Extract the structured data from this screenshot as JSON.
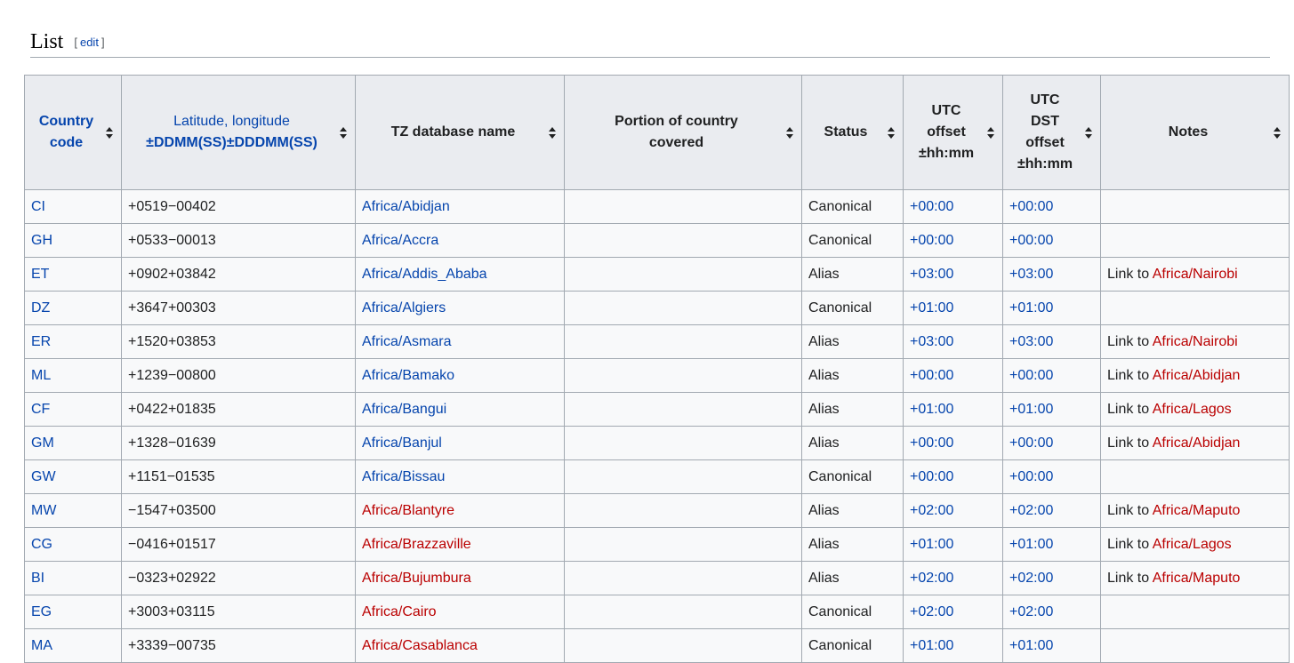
{
  "section": {
    "title": "List",
    "edit_open": "[",
    "edit_label": "edit",
    "edit_close": "]"
  },
  "table": {
    "headers": {
      "country_code": {
        "line1": "Country",
        "line2": "code"
      },
      "latlong": {
        "line1": "Latitude, longitude",
        "line2": "±DDMM(SS)±DDDMM(SS)"
      },
      "tz_name": "TZ database name",
      "portion": {
        "line1": "Portion of country",
        "line2": "covered"
      },
      "status": "Status",
      "utc_offset": {
        "line1": "UTC",
        "line2": "offset",
        "line3": "±hh:mm"
      },
      "utc_dst": {
        "line1": "UTC",
        "line2": "DST",
        "line3": "offset",
        "line4": "±hh:mm"
      },
      "notes": "Notes"
    },
    "link_prefix": "Link to",
    "rows": [
      {
        "code": "CI",
        "coords": "+0519−00402",
        "tz": "Africa/Abidjan",
        "tz_exists": true,
        "portion": "",
        "status": "Canonical",
        "utc": "+00:00",
        "dst": "+00:00",
        "note_target": ""
      },
      {
        "code": "GH",
        "coords": "+0533−00013",
        "tz": "Africa/Accra",
        "tz_exists": true,
        "portion": "",
        "status": "Canonical",
        "utc": "+00:00",
        "dst": "+00:00",
        "note_target": ""
      },
      {
        "code": "ET",
        "coords": "+0902+03842",
        "tz": "Africa/Addis_Ababa",
        "tz_exists": true,
        "portion": "",
        "status": "Alias",
        "utc": "+03:00",
        "dst": "+03:00",
        "note_target": "Africa/Nairobi"
      },
      {
        "code": "DZ",
        "coords": "+3647+00303",
        "tz": "Africa/Algiers",
        "tz_exists": true,
        "portion": "",
        "status": "Canonical",
        "utc": "+01:00",
        "dst": "+01:00",
        "note_target": ""
      },
      {
        "code": "ER",
        "coords": "+1520+03853",
        "tz": "Africa/Asmara",
        "tz_exists": true,
        "portion": "",
        "status": "Alias",
        "utc": "+03:00",
        "dst": "+03:00",
        "note_target": "Africa/Nairobi"
      },
      {
        "code": "ML",
        "coords": "+1239−00800",
        "tz": "Africa/Bamako",
        "tz_exists": true,
        "portion": "",
        "status": "Alias",
        "utc": "+00:00",
        "dst": "+00:00",
        "note_target": "Africa/Abidjan"
      },
      {
        "code": "CF",
        "coords": "+0422+01835",
        "tz": "Africa/Bangui",
        "tz_exists": true,
        "portion": "",
        "status": "Alias",
        "utc": "+01:00",
        "dst": "+01:00",
        "note_target": "Africa/Lagos"
      },
      {
        "code": "GM",
        "coords": "+1328−01639",
        "tz": "Africa/Banjul",
        "tz_exists": true,
        "portion": "",
        "status": "Alias",
        "utc": "+00:00",
        "dst": "+00:00",
        "note_target": "Africa/Abidjan"
      },
      {
        "code": "GW",
        "coords": "+1151−01535",
        "tz": "Africa/Bissau",
        "tz_exists": true,
        "portion": "",
        "status": "Canonical",
        "utc": "+00:00",
        "dst": "+00:00",
        "note_target": ""
      },
      {
        "code": "MW",
        "coords": "−1547+03500",
        "tz": "Africa/Blantyre",
        "tz_exists": false,
        "portion": "",
        "status": "Alias",
        "utc": "+02:00",
        "dst": "+02:00",
        "note_target": "Africa/Maputo"
      },
      {
        "code": "CG",
        "coords": "−0416+01517",
        "tz": "Africa/Brazzaville",
        "tz_exists": false,
        "portion": "",
        "status": "Alias",
        "utc": "+01:00",
        "dst": "+01:00",
        "note_target": "Africa/Lagos"
      },
      {
        "code": "BI",
        "coords": "−0323+02922",
        "tz": "Africa/Bujumbura",
        "tz_exists": false,
        "portion": "",
        "status": "Alias",
        "utc": "+02:00",
        "dst": "+02:00",
        "note_target": "Africa/Maputo"
      },
      {
        "code": "EG",
        "coords": "+3003+03115",
        "tz": "Africa/Cairo",
        "tz_exists": false,
        "portion": "",
        "status": "Canonical",
        "utc": "+02:00",
        "dst": "+02:00",
        "note_target": ""
      },
      {
        "code": "MA",
        "coords": "+3339−00735",
        "tz": "Africa/Casablanca",
        "tz_exists": false,
        "portion": "",
        "status": "Canonical",
        "utc": "+01:00",
        "dst": "+01:00",
        "note_target": ""
      }
    ]
  },
  "colors": {
    "link": "#0645ad",
    "redlink": "#ba0000",
    "header_bg": "#eaecf0",
    "cell_bg": "#f8f9fa",
    "border": "#a2a9b1"
  },
  "icons": {
    "sort": "sort-both-arrows-icon"
  }
}
